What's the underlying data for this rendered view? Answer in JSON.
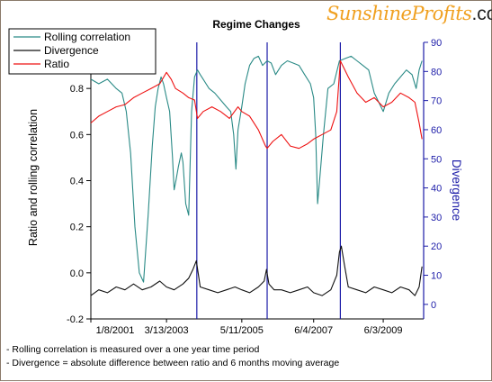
{
  "logo": {
    "brand": "SunshineProfits",
    "tld": ".com"
  },
  "notes": [
    "- Rolling correlation is measured over a one year time period",
    "- Divergence = absolute difference between ratio and 6 months moving average"
  ],
  "colors": {
    "correlation": "#2a8a86",
    "divergence": "#111111",
    "ratio": "#ee1111",
    "axis_right": "#1c1ca8",
    "regime_lines": "#1c1ca8"
  },
  "chart_data": {
    "type": "line",
    "title": "Regime Changes",
    "ylabel": "Ratio and rolling correlation",
    "y2label": "Divergence",
    "ylim": [
      -0.2,
      1.0
    ],
    "y2lim": [
      -5,
      90
    ],
    "xlim": [
      "2001-01-08",
      "2010-08-01"
    ],
    "yticks": [
      "-0.2",
      "0.0",
      "0.2",
      "0.4",
      "0.6",
      "0.8"
    ],
    "y2ticks": [
      "0",
      "10",
      "20",
      "30",
      "40",
      "50",
      "60",
      "70",
      "80",
      "90"
    ],
    "xticks": [
      "1/8/2001",
      "3/13/2003",
      "5/11/2005",
      "6/4/2007",
      "6/3/2009"
    ],
    "legend": {
      "position": "top-left",
      "entries": [
        "Rolling correlation",
        "Divergence",
        "Ratio"
      ]
    },
    "regime_changes": [
      "2004-01-25",
      "2006-02-01",
      "2008-03-10"
    ],
    "series": [
      {
        "name": "Rolling correlation",
        "axis": "left",
        "x": [
          "2001-01-08",
          "2001-04-01",
          "2001-07-01",
          "2001-10-01",
          "2001-12-01",
          "2002-01-15",
          "2002-03-01",
          "2002-04-15",
          "2002-06-01",
          "2002-07-15",
          "2002-09-01",
          "2002-10-15",
          "2002-11-15",
          "2002-12-15",
          "2003-01-15",
          "2003-02-10",
          "2003-03-13",
          "2003-04-15",
          "2003-05-15",
          "2003-06-01",
          "2003-06-20",
          "2003-07-15",
          "2003-08-15",
          "2003-09-01",
          "2003-10-01",
          "2003-11-01",
          "2003-12-01",
          "2004-01-01",
          "2004-02-01",
          "2004-03-01",
          "2004-04-01",
          "2004-05-01",
          "2004-06-01",
          "2004-08-01",
          "2004-10-01",
          "2004-12-01",
          "2005-01-15",
          "2005-02-15",
          "2005-03-10",
          "2005-04-01",
          "2005-05-11",
          "2005-06-15",
          "2005-08-01",
          "2005-09-15",
          "2005-11-01",
          "2005-12-15",
          "2006-02-01",
          "2006-03-15",
          "2006-05-01",
          "2006-07-01",
          "2006-09-01",
          "2006-11-01",
          "2007-01-01",
          "2007-03-01",
          "2007-05-01",
          "2007-06-04",
          "2007-06-25",
          "2007-07-15",
          "2007-08-15",
          "2007-09-15",
          "2007-11-01",
          "2008-01-01",
          "2008-03-01",
          "2008-05-01",
          "2008-07-01",
          "2008-09-01",
          "2008-11-01",
          "2009-01-01",
          "2009-03-01",
          "2009-06-03",
          "2009-08-01",
          "2009-10-01",
          "2009-12-01",
          "2010-02-01",
          "2010-04-01",
          "2010-05-15",
          "2010-06-15",
          "2010-07-15"
        ],
        "y": [
          0.84,
          0.82,
          0.84,
          0.8,
          0.78,
          0.7,
          0.52,
          0.2,
          0.0,
          -0.04,
          0.25,
          0.55,
          0.72,
          0.8,
          0.85,
          0.82,
          0.76,
          0.7,
          0.5,
          0.36,
          0.4,
          0.46,
          0.52,
          0.48,
          0.3,
          0.25,
          0.7,
          0.85,
          0.88,
          0.86,
          0.84,
          0.82,
          0.8,
          0.78,
          0.75,
          0.72,
          0.7,
          0.6,
          0.45,
          0.62,
          0.72,
          0.82,
          0.9,
          0.93,
          0.94,
          0.9,
          0.92,
          0.91,
          0.86,
          0.9,
          0.92,
          0.91,
          0.9,
          0.86,
          0.82,
          0.76,
          0.6,
          0.3,
          0.45,
          0.6,
          0.8,
          0.82,
          0.92,
          0.93,
          0.94,
          0.92,
          0.9,
          0.88,
          0.78,
          0.7,
          0.78,
          0.82,
          0.85,
          0.88,
          0.86,
          0.8,
          0.88,
          0.92
        ]
      },
      {
        "name": "Divergence",
        "axis": "right",
        "x": [
          "2001-01-08",
          "2001-04-01",
          "2001-07-01",
          "2001-10-01",
          "2002-01-01",
          "2002-04-01",
          "2002-07-01",
          "2002-10-01",
          "2003-01-01",
          "2003-03-13",
          "2003-06-01",
          "2003-09-01",
          "2003-11-01",
          "2003-12-15",
          "2004-01-20",
          "2004-03-01",
          "2004-06-01",
          "2004-09-01",
          "2004-12-01",
          "2005-03-01",
          "2005-05-11",
          "2005-08-01",
          "2005-11-01",
          "2006-01-01",
          "2006-01-25",
          "2006-02-20",
          "2006-04-15",
          "2006-07-01",
          "2006-10-01",
          "2007-01-01",
          "2007-04-01",
          "2007-06-04",
          "2007-09-01",
          "2007-12-01",
          "2008-02-01",
          "2008-03-01",
          "2008-03-20",
          "2008-04-20",
          "2008-06-01",
          "2008-09-01",
          "2008-12-01",
          "2009-03-01",
          "2009-06-03",
          "2009-09-01",
          "2009-12-01",
          "2010-03-01",
          "2010-05-01",
          "2010-06-15",
          "2010-07-15"
        ],
        "y": [
          3,
          5,
          4,
          6,
          5,
          7,
          5,
          6,
          8,
          6,
          5,
          7,
          9,
          12,
          15,
          6,
          5,
          4,
          5,
          6,
          5,
          4,
          6,
          8,
          12,
          7,
          5,
          5,
          4,
          5,
          6,
          4,
          3,
          5,
          10,
          18,
          20,
          14,
          6,
          5,
          4,
          6,
          5,
          4,
          6,
          5,
          3,
          6,
          13
        ]
      },
      {
        "name": "Ratio",
        "axis": "left",
        "x": [
          "2001-01-08",
          "2001-04-01",
          "2001-07-01",
          "2001-10-01",
          "2002-01-01",
          "2002-04-01",
          "2002-07-01",
          "2002-10-01",
          "2003-01-01",
          "2003-03-13",
          "2003-05-01",
          "2003-06-15",
          "2003-09-01",
          "2003-11-01",
          "2004-01-01",
          "2004-02-01",
          "2004-04-01",
          "2004-07-01",
          "2004-10-01",
          "2005-01-01",
          "2005-04-01",
          "2005-05-11",
          "2005-08-01",
          "2005-11-01",
          "2006-01-15",
          "2006-02-01",
          "2006-04-01",
          "2006-07-01",
          "2006-10-01",
          "2007-01-01",
          "2007-04-01",
          "2007-06-04",
          "2007-09-01",
          "2007-12-01",
          "2008-02-01",
          "2008-03-10",
          "2008-06-01",
          "2008-09-01",
          "2008-12-01",
          "2009-03-01",
          "2009-06-03",
          "2009-09-01",
          "2009-12-01",
          "2010-03-01",
          "2010-05-01",
          "2010-06-15",
          "2010-07-15"
        ],
        "y": [
          0.65,
          0.68,
          0.7,
          0.72,
          0.73,
          0.76,
          0.78,
          0.8,
          0.82,
          0.87,
          0.84,
          0.8,
          0.78,
          0.76,
          0.75,
          0.67,
          0.7,
          0.72,
          0.7,
          0.67,
          0.72,
          0.7,
          0.68,
          0.62,
          0.55,
          0.54,
          0.57,
          0.6,
          0.55,
          0.54,
          0.56,
          0.58,
          0.6,
          0.62,
          0.7,
          0.92,
          0.85,
          0.78,
          0.74,
          0.76,
          0.72,
          0.74,
          0.78,
          0.76,
          0.74,
          0.65,
          0.58
        ]
      }
    ]
  }
}
